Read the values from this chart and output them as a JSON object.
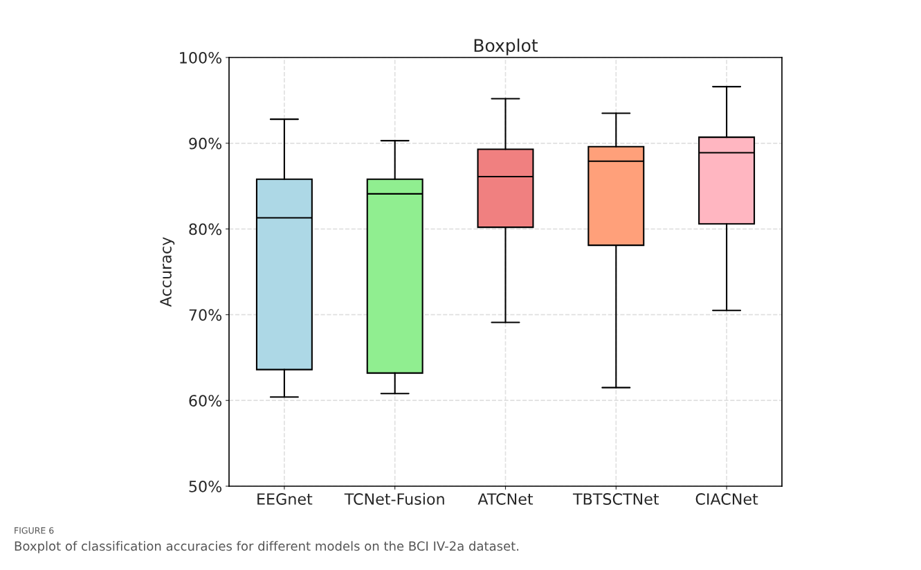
{
  "chart_data": {
    "type": "box",
    "title": "Boxplot",
    "ylabel": "Accuracy",
    "categories": [
      "EEGnet",
      "TCNet-Fusion",
      "ATCNet",
      "TBTSCTNet",
      "CIACNet"
    ],
    "boxes": [
      {
        "low": 60.4,
        "q1": 63.6,
        "median": 81.3,
        "q3": 85.8,
        "high": 92.8
      },
      {
        "low": 60.8,
        "q1": 63.2,
        "median": 84.1,
        "q3": 85.8,
        "high": 90.3
      },
      {
        "low": 69.1,
        "q1": 80.2,
        "median": 86.1,
        "q3": 89.3,
        "high": 95.2
      },
      {
        "low": 61.5,
        "q1": 78.1,
        "median": 87.9,
        "q3": 89.6,
        "high": 93.5
      },
      {
        "low": 70.5,
        "q1": 80.6,
        "median": 88.9,
        "q3": 90.7,
        "high": 96.6
      }
    ],
    "colors": [
      "#add8e6",
      "#90ee90",
      "#f08080",
      "#ffa07a",
      "#ffb6c1"
    ],
    "ylim": [
      50,
      100
    ],
    "yticks": [
      {
        "value": 50,
        "label": "50%"
      },
      {
        "value": 60,
        "label": "60%"
      },
      {
        "value": 70,
        "label": "70%"
      },
      {
        "value": 80,
        "label": "80%"
      },
      {
        "value": 90,
        "label": "90%"
      },
      {
        "value": 100,
        "label": "100%"
      }
    ],
    "grid": true,
    "annotations": [
      "FIGURE 6",
      "Boxplot of classification accuracies for different models on the BCI IV-2a dataset."
    ]
  }
}
